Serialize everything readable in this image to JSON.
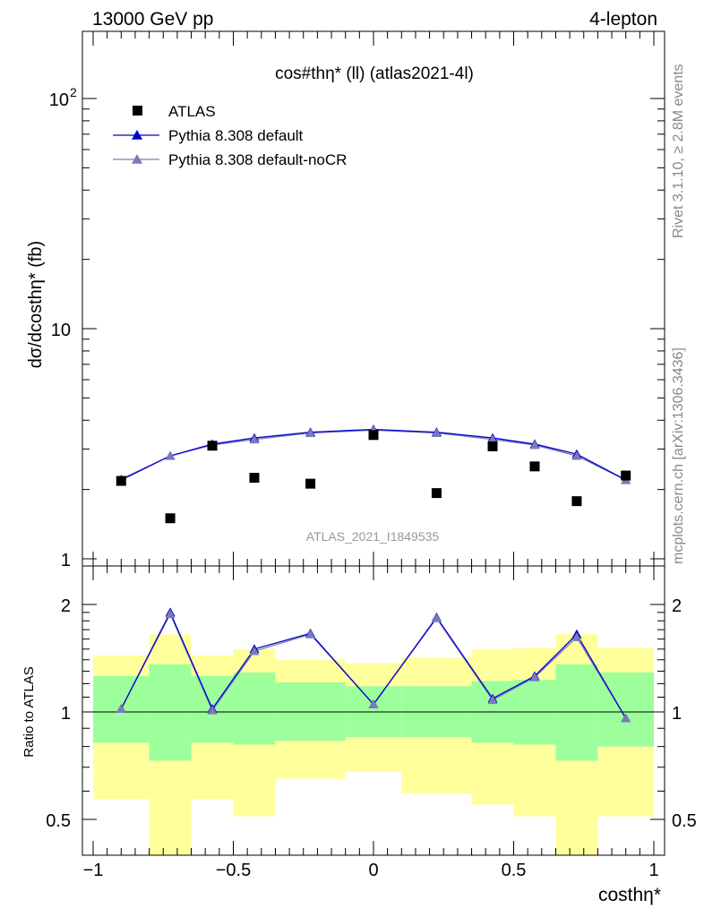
{
  "header": {
    "left_label": "13000 GeV pp",
    "right_label": "4-lepton"
  },
  "side": {
    "rivet": "Rivet 3.1.10, ≥ 2.8M events",
    "mcplots": "mcplots.cern.ch [arXiv:1306.3436]"
  },
  "chart_data": [
    {
      "type": "scatter",
      "title": "cos#thη* (ll) (atlas2021-4l)",
      "ylabel": "dσ/dcosthη* (fb)",
      "xlabel": "costhη*",
      "watermark": "ATLAS_2021_I1849535",
      "yscale": "log",
      "xlim": [
        -1.0,
        1.0
      ],
      "ylim": [
        1.0,
        200.0
      ],
      "y_tick_labels": [
        "1",
        "10",
        "10^2"
      ],
      "legend_position": "top-left",
      "x": [
        -0.9,
        -0.725,
        -0.575,
        -0.425,
        -0.225,
        0.0,
        0.225,
        0.425,
        0.575,
        0.725,
        0.9
      ],
      "series": [
        {
          "name": "ATLAS",
          "color": "#000000",
          "marker": "square",
          "values": [
            2.18,
            1.5,
            3.1,
            2.25,
            2.12,
            3.45,
            1.93,
            3.08,
            2.52,
            1.78,
            2.3
          ]
        },
        {
          "name": "Pythia 8.308 default",
          "color": "#0000cc",
          "marker": "triangle",
          "values": [
            2.2,
            2.8,
            3.15,
            3.35,
            3.55,
            3.65,
            3.55,
            3.35,
            3.15,
            2.85,
            2.2
          ]
        },
        {
          "name": "Pythia 8.308 default-noCR",
          "color": "#7a7ab8",
          "marker": "triangle",
          "values": [
            2.22,
            2.8,
            3.12,
            3.3,
            3.52,
            3.62,
            3.52,
            3.3,
            3.12,
            2.8,
            2.2
          ]
        }
      ]
    },
    {
      "type": "line",
      "ylabel": "Ratio to ATLAS",
      "xlabel": "costhη*",
      "xlim": [
        -1.0,
        1.0
      ],
      "ylim": [
        0.42,
        2.35
      ],
      "y_tick_labels": [
        "0.5",
        "1",
        "2"
      ],
      "x_tick_labels": [
        "−1",
        "−0.5",
        "0",
        "0.5",
        "1"
      ],
      "x": [
        -0.9,
        -0.725,
        -0.575,
        -0.425,
        -0.225,
        0.0,
        0.225,
        0.425,
        0.575,
        0.725,
        0.9
      ],
      "bin_edges": [
        -1.0,
        -0.8,
        -0.65,
        -0.5,
        -0.35,
        -0.1,
        0.1,
        0.35,
        0.5,
        0.65,
        0.8,
        1.0
      ],
      "bands": {
        "inner_color": "#9cff9c",
        "outer_color": "#ffff9c",
        "inner_lo": [
          0.82,
          0.73,
          0.82,
          0.81,
          0.83,
          0.85,
          0.85,
          0.82,
          0.81,
          0.73,
          0.8
        ],
        "inner_hi": [
          1.26,
          1.36,
          1.26,
          1.29,
          1.21,
          1.18,
          1.18,
          1.22,
          1.23,
          1.36,
          1.29
        ],
        "outer_lo": [
          0.57,
          0.3,
          0.57,
          0.51,
          0.65,
          0.68,
          0.59,
          0.55,
          0.51,
          0.3,
          0.51
        ],
        "outer_hi": [
          1.44,
          1.65,
          1.44,
          1.5,
          1.4,
          1.37,
          1.42,
          1.5,
          1.51,
          1.65,
          1.51
        ]
      },
      "reference_line": 1.0,
      "series": [
        {
          "name": "Pythia 8.308 default",
          "color": "#0000cc",
          "values": [
            1.02,
            1.9,
            1.02,
            1.5,
            1.66,
            1.05,
            1.84,
            1.09,
            1.26,
            1.65,
            0.96
          ]
        },
        {
          "name": "Pythia 8.308 default-noCR",
          "color": "#7a7ab8",
          "values": [
            1.02,
            1.88,
            1.01,
            1.48,
            1.65,
            1.05,
            1.83,
            1.08,
            1.25,
            1.62,
            0.96
          ]
        }
      ]
    }
  ]
}
